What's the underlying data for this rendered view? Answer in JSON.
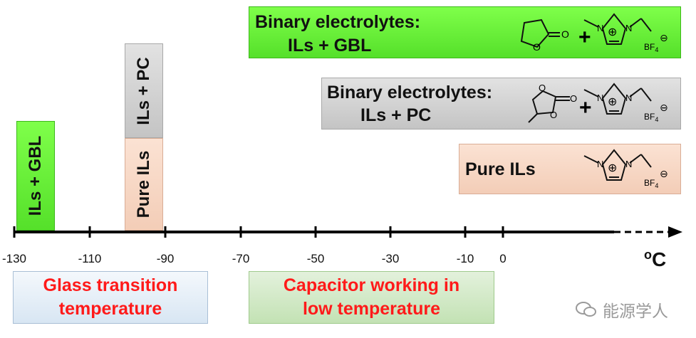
{
  "panels": {
    "gbl": {
      "line1": "Binary electrolytes:",
      "line2": "ILs + GBL"
    },
    "pc": {
      "line1": "Binary electrolytes:",
      "line2": "ILs + PC"
    },
    "pure": {
      "label": "Pure ILs"
    }
  },
  "bars": {
    "gbl": {
      "label": "ILs + GBL",
      "start": -130,
      "end": -120,
      "color": "#66ff33"
    },
    "pc": {
      "label": "ILs + PC",
      "start": -100,
      "end": -95,
      "color": "#c8c8c8"
    },
    "pure": {
      "label": "Pure ILs",
      "start": -100,
      "end": -95,
      "color": "#f8d5c0"
    }
  },
  "axis": {
    "ticks": [
      "-130",
      "-110",
      "-90",
      "-70",
      "-50",
      "-30",
      "-10",
      "0"
    ],
    "unit": "oC"
  },
  "chem": {
    "gbl_o": "O",
    "gbl_o2": "O",
    "pc_o1": "O",
    "pc_o2": "O",
    "pc_o3": "O",
    "n": "N",
    "plus": "+",
    "anion": "BF4",
    "charge_plus": "⊕",
    "charge_minus": "⊖"
  },
  "legends": {
    "glass": {
      "line1": "Glass transition",
      "line2": "temperature",
      "color": "#ff1a1a"
    },
    "capacitor": {
      "line1": "Capacitor working in",
      "line2": "low temperature",
      "color": "#ff1a1a"
    }
  },
  "watermark": {
    "text": "能源学人"
  }
}
